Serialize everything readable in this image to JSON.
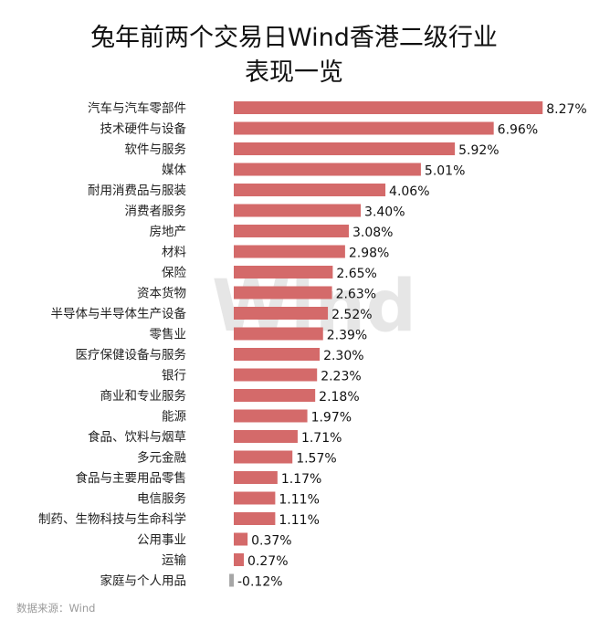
{
  "chart_data": {
    "type": "bar",
    "orientation": "horizontal",
    "title": "兔年前两个交易日Wind香港二级行业表现一览",
    "title_lines": [
      "兔年前两个交易日Wind香港二级行业",
      "表现一览"
    ],
    "categories": [
      "汽车与汽车零部件",
      "技术硬件与设备",
      "软件与服务",
      "媒体",
      "耐用消费品与服装",
      "消费者服务",
      "房地产",
      "材料",
      "保险",
      "资本货物",
      "半导体与半导体生产设备",
      "零售业",
      "医疗保健设备与服务",
      "银行",
      "商业和专业服务",
      "能源",
      "食品、饮料与烟草",
      "多元金融",
      "食品与主要用品零售",
      "电信服务",
      "制药、生物科技与生命科学",
      "公用事业",
      "运输",
      "家庭与个人用品"
    ],
    "values": [
      8.27,
      6.96,
      5.92,
      5.01,
      4.06,
      3.4,
      3.08,
      2.98,
      2.65,
      2.63,
      2.52,
      2.39,
      2.3,
      2.23,
      2.18,
      1.97,
      1.71,
      1.57,
      1.17,
      1.11,
      1.11,
      0.37,
      0.27,
      -0.12
    ],
    "value_labels": [
      "8.27%",
      "6.96%",
      "5.92%",
      "5.01%",
      "4.06%",
      "3.40%",
      "3.08%",
      "2.98%",
      "2.65%",
      "2.63%",
      "2.52%",
      "2.39%",
      "2.30%",
      "2.23%",
      "2.18%",
      "1.97%",
      "1.71%",
      "1.57%",
      "1.17%",
      "1.11%",
      "1.11%",
      "0.37%",
      "0.27%",
      "-0.12%"
    ],
    "xlim": [
      -0.12,
      8.27
    ],
    "grid": false,
    "legend": "none",
    "colors": {
      "positive": "#d46a6a",
      "negative": "#a6a6a6"
    }
  },
  "source": "数据来源：Wind",
  "watermark": "Wind"
}
